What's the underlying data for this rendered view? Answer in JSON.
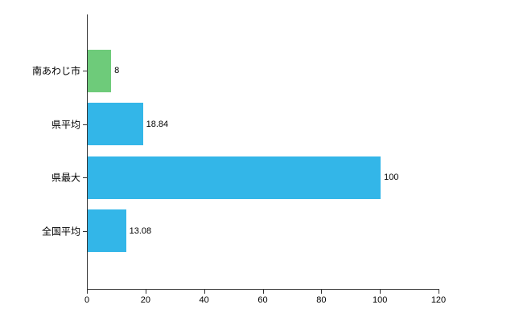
{
  "chart_data": {
    "type": "bar",
    "orientation": "horizontal",
    "title": "",
    "xlabel": "",
    "ylabel": "",
    "categories": [
      "南あわじ市",
      "県平均",
      "県最大",
      "全国平均"
    ],
    "values": [
      8,
      18.84,
      100,
      13.08
    ],
    "value_labels": [
      "8",
      "18.84",
      "100",
      "13.08"
    ],
    "colors": [
      "#6ecb7a",
      "#33b6e8",
      "#33b6e8",
      "#33b6e8"
    ],
    "xlim": [
      0,
      120
    ],
    "x_ticks": [
      0,
      20,
      40,
      60,
      80,
      100,
      120
    ],
    "grid": false,
    "legend": "none",
    "axis_color": "#333333",
    "text_color": "#000000"
  }
}
